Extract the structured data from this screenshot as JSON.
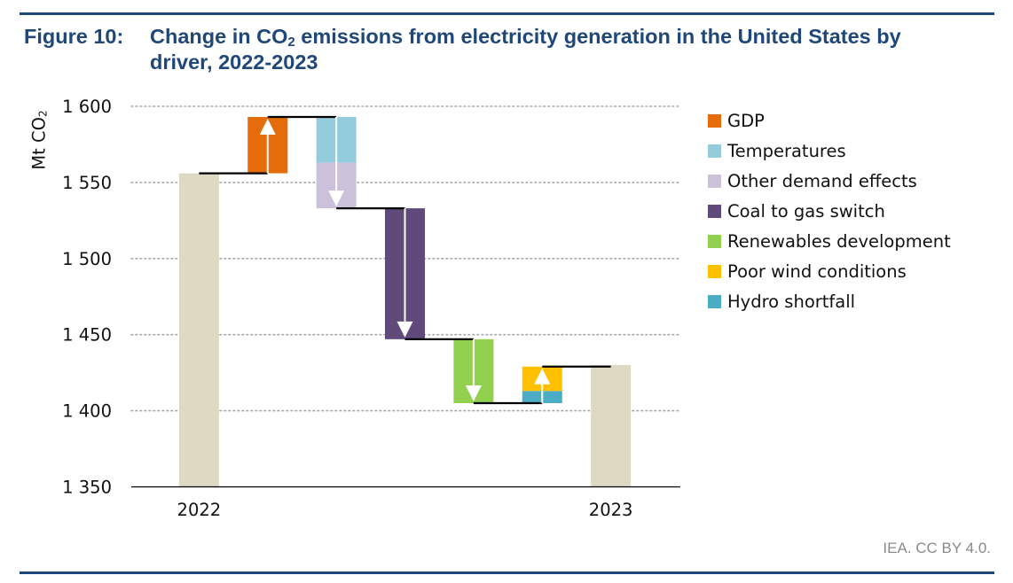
{
  "figure": {
    "label": "Figure 10:",
    "title_before_sub": "Change in CO",
    "title_sub": "2",
    "title_after_sub": " emissions from electricity generation in the United States by",
    "title_line2": "driver, 2022-2023",
    "source": "IEA. CC BY 4.0."
  },
  "chart_data": {
    "type": "bar",
    "subtype": "waterfall",
    "title": "Change in CO2 emissions from electricity generation in the United States by driver, 2022-2023",
    "xlabel": "",
    "ylabel_main": "Mt CO",
    "ylabel_sub": "2",
    "ylim": [
      1350,
      1600
    ],
    "yticks": [
      1350,
      1400,
      1450,
      1500,
      1550,
      1600
    ],
    "ytick_labels": [
      "1 350",
      "1 400",
      "1 450",
      "1 500",
      "1 550",
      "1 600"
    ],
    "grid": "dotted-horizontal",
    "legend_position": "right",
    "categories": [
      "2022",
      "",
      "",
      "",
      "",
      "",
      "2023"
    ],
    "totals": [
      {
        "name": "2022",
        "value": 1556,
        "color": "#ddd9c3"
      },
      {
        "name": "2023",
        "value": 1430,
        "color": "#ddd9c3"
      }
    ],
    "series": [
      {
        "name": "GDP",
        "value": 37,
        "column": 1,
        "color": "#e46c0a"
      },
      {
        "name": "Temperatures",
        "value": -30,
        "column": 2,
        "color": "#93cddd"
      },
      {
        "name": "Other demand effects",
        "value": -30,
        "column": 2,
        "color": "#ccc1da"
      },
      {
        "name": "Coal to gas switch",
        "value": -86,
        "column": 3,
        "color": "#604a7b"
      },
      {
        "name": "Renewables development",
        "value": -42,
        "column": 4,
        "color": "#92d050"
      },
      {
        "name": "Poor wind conditions",
        "value": 16,
        "column": 5,
        "color": "#ffc000"
      },
      {
        "name": "Hydro shortfall",
        "value": 8,
        "column": 5,
        "color": "#4bacc6"
      }
    ],
    "legend": [
      {
        "label": "GDP",
        "color": "#e46c0a"
      },
      {
        "label": "Temperatures",
        "color": "#93cddd"
      },
      {
        "label": "Other demand effects",
        "color": "#ccc1da"
      },
      {
        "label": "Coal to gas switch",
        "color": "#604a7b"
      },
      {
        "label": "Renewables development",
        "color": "#92d050"
      },
      {
        "label": "Poor wind conditions",
        "color": "#ffc000"
      },
      {
        "label": "Hydro shortfall",
        "color": "#4bacc6"
      }
    ]
  }
}
